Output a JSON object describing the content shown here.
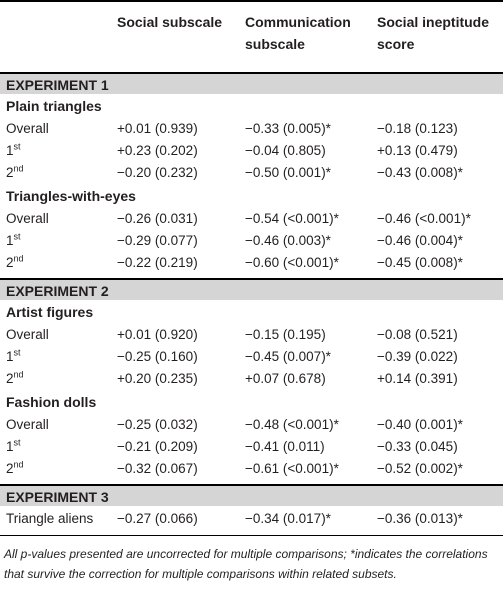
{
  "headers": {
    "social": "Social subscale",
    "communication_line1": "Communication",
    "communication_line2": "subscale",
    "ineptitude_line1": "Social ineptitude",
    "ineptitude_line2": "score"
  },
  "experiments": [
    {
      "label": "EXPERIMENT 1",
      "sections": [
        {
          "title": "Plain triangles",
          "rows": [
            {
              "label": "Overall",
              "sup": "",
              "social": "+0.01 (0.939)",
              "communication": "−0.33 (0.005)*",
              "ineptitude": "−0.18 (0.123)"
            },
            {
              "label": "1",
              "sup": "st",
              "social": "+0.23 (0.202)",
              "communication": "−0.04 (0.805)",
              "ineptitude": "+0.13 (0.479)"
            },
            {
              "label": "2",
              "sup": "nd",
              "social": "−0.20 (0.232)",
              "communication": "−0.50 (0.001)*",
              "ineptitude": "−0.43 (0.008)*"
            }
          ]
        },
        {
          "title": "Triangles-with-eyes",
          "rows": [
            {
              "label": "Overall",
              "sup": "",
              "social": "−0.26 (0.031)",
              "communication": "−0.54 (<0.001)*",
              "ineptitude": "−0.46 (<0.001)*"
            },
            {
              "label": "1",
              "sup": "st",
              "social": "−0.29 (0.077)",
              "communication": "−0.46 (0.003)*",
              "ineptitude": "−0.46 (0.004)*"
            },
            {
              "label": "2",
              "sup": "nd",
              "social": "−0.22 (0.219)",
              "communication": "−0.60 (<0.001)*",
              "ineptitude": "−0.45 (0.008)*"
            }
          ]
        }
      ]
    },
    {
      "label": "EXPERIMENT 2",
      "sections": [
        {
          "title": "Artist figures",
          "rows": [
            {
              "label": "Overall",
              "sup": "",
              "social": "+0.01 (0.920)",
              "communication": "−0.15 (0.195)",
              "ineptitude": "−0.08 (0.521)"
            },
            {
              "label": "1",
              "sup": "st",
              "social": "−0.25 (0.160)",
              "communication": "−0.45 (0.007)*",
              "ineptitude": "−0.39 (0.022)"
            },
            {
              "label": "2",
              "sup": "nd",
              "social": "+0.20 (0.235)",
              "communication": "+0.07 (0.678)",
              "ineptitude": "+0.14 (0.391)"
            }
          ]
        },
        {
          "title": "Fashion dolls",
          "rows": [
            {
              "label": "Overall",
              "sup": "",
              "social": "−0.25 (0.032)",
              "communication": "−0.48 (<0.001)*",
              "ineptitude": "−0.40 (0.001)*"
            },
            {
              "label": "1",
              "sup": "st",
              "social": "−0.21 (0.209)",
              "communication": "−0.41 (0.011)",
              "ineptitude": "−0.33 (0.045)"
            },
            {
              "label": "2",
              "sup": "nd",
              "social": "−0.32 (0.067)",
              "communication": "−0.61 (<0.001)*",
              "ineptitude": "−0.52 (0.002)*"
            }
          ]
        }
      ]
    },
    {
      "label": "EXPERIMENT 3",
      "sections": [
        {
          "title": "",
          "rows": [
            {
              "label": "Triangle aliens",
              "sup": "",
              "social": "−0.27 (0.066)",
              "communication": "−0.34 (0.017)*",
              "ineptitude": "−0.36 (0.013)*"
            }
          ]
        }
      ]
    }
  ],
  "footnote": "All p-values presented are uncorrected for multiple comparisons; *indicates the correlations that survive the correction for multiple comparisons within related subsets."
}
